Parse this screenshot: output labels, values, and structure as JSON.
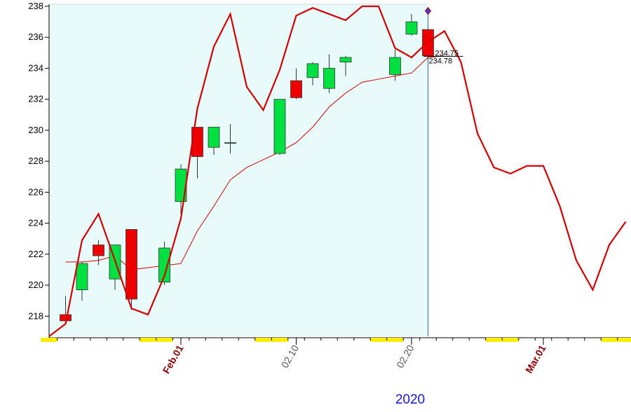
{
  "chart_data": {
    "type": "candlestick",
    "ylim": [
      216.7,
      238
    ],
    "yticks": [
      218,
      220,
      222,
      224,
      226,
      228,
      230,
      232,
      234,
      236,
      238
    ],
    "xlabel": "2020",
    "x_tick_labels": [
      {
        "label": "Feb.01",
        "day": 8,
        "style": "month"
      },
      {
        "label": "02.10",
        "day": 15,
        "style": "day"
      },
      {
        "label": "02.20",
        "day": 22,
        "style": "day"
      },
      {
        "label": "Mar.01",
        "day": 30,
        "style": "month"
      }
    ],
    "candles": [
      {
        "day": 1,
        "open": 218.1,
        "high": 219.3,
        "low": 217.7,
        "close": 217.7
      },
      {
        "day": 2,
        "open": 219.7,
        "high": 221.5,
        "low": 219.0,
        "close": 221.4
      },
      {
        "day": 3,
        "open": 222.6,
        "high": 222.9,
        "low": 221.3,
        "close": 221.9
      },
      {
        "day": 4,
        "open": 220.4,
        "high": 222.6,
        "low": 219.7,
        "close": 222.6
      },
      {
        "day": 5,
        "open": 223.6,
        "high": 223.6,
        "low": 218.4,
        "close": 219.1
      },
      {
        "day": 7,
        "open": 220.2,
        "high": 222.8,
        "low": 220.0,
        "close": 222.4
      },
      {
        "day": 8,
        "open": 225.4,
        "high": 227.8,
        "low": 224.6,
        "close": 227.5
      },
      {
        "day": 9,
        "open": 230.2,
        "high": 230.2,
        "low": 226.9,
        "close": 228.3
      },
      {
        "day": 10,
        "open": 228.9,
        "high": 230.2,
        "low": 228.4,
        "close": 230.2
      },
      {
        "day": 11,
        "open": 229.2,
        "high": 230.4,
        "low": 228.5,
        "close": 229.2
      },
      {
        "day": 14,
        "open": 228.5,
        "high": 232.0,
        "low": 228.4,
        "close": 232.0
      },
      {
        "day": 15,
        "open": 233.2,
        "high": 234.0,
        "low": 232.0,
        "close": 232.1
      },
      {
        "day": 16,
        "open": 233.4,
        "high": 234.4,
        "low": 232.9,
        "close": 234.3
      },
      {
        "day": 17,
        "open": 232.7,
        "high": 234.9,
        "low": 232.4,
        "close": 234.0
      },
      {
        "day": 18,
        "open": 234.4,
        "high": 234.8,
        "low": 233.5,
        "close": 234.7
      },
      {
        "day": 21,
        "open": 233.6,
        "high": 235.2,
        "low": 233.2,
        "close": 234.7
      },
      {
        "day": 22,
        "open": 236.2,
        "high": 237.5,
        "low": 236.1,
        "close": 237.0
      },
      {
        "day": 23,
        "open": 236.5,
        "high": 236.5,
        "low": 234.7,
        "close": 234.8
      }
    ],
    "series": [
      {
        "color": "#d40000",
        "style": "thick",
        "points": [
          [
            0,
            216.7
          ],
          [
            1,
            217.5
          ],
          [
            2,
            222.9
          ],
          [
            3,
            224.6
          ],
          [
            4,
            221.6
          ],
          [
            5,
            218.5
          ],
          [
            6,
            218.1
          ],
          [
            7,
            220.6
          ],
          [
            8,
            224.3
          ],
          [
            9,
            231.4
          ],
          [
            10,
            235.4
          ],
          [
            11,
            237.5
          ],
          [
            12,
            232.8
          ],
          [
            13,
            231.3
          ],
          [
            14,
            233.9
          ],
          [
            15,
            237.4
          ],
          [
            16,
            237.9
          ],
          [
            17,
            237.5
          ],
          [
            18,
            237.1
          ],
          [
            19,
            238.0
          ],
          [
            20,
            238.0
          ],
          [
            21,
            235.3
          ],
          [
            22,
            234.7
          ],
          [
            23,
            235.7
          ],
          [
            24,
            236.4
          ],
          [
            25,
            234.4
          ],
          [
            26,
            229.8
          ],
          [
            27,
            227.6
          ],
          [
            28,
            227.2
          ],
          [
            29,
            227.7
          ],
          [
            30,
            227.7
          ],
          [
            31,
            225.1
          ],
          [
            32,
            221.6
          ],
          [
            33,
            219.7
          ],
          [
            34,
            222.6
          ],
          [
            35,
            224.1
          ]
        ]
      },
      {
        "color": "#d40000",
        "style": "thin",
        "points": [
          [
            1,
            221.5
          ],
          [
            2,
            221.5
          ],
          [
            3,
            221.6
          ],
          [
            4,
            221.9
          ],
          [
            5,
            221.0
          ],
          [
            8,
            221.4
          ],
          [
            9,
            223.5
          ],
          [
            10,
            225.1
          ],
          [
            11,
            226.8
          ],
          [
            12,
            227.6
          ],
          [
            13,
            228.1
          ],
          [
            14,
            228.6
          ],
          [
            15,
            229.2
          ],
          [
            16,
            230.2
          ],
          [
            17,
            231.5
          ],
          [
            18,
            232.4
          ],
          [
            19,
            233.1
          ],
          [
            20,
            233.3
          ],
          [
            21,
            233.5
          ],
          [
            22,
            233.7
          ],
          [
            23,
            234.7
          ],
          [
            24,
            234.8
          ]
        ]
      }
    ],
    "current_day": 23,
    "marker_value": 237.7,
    "price_labels": [
      "234.75",
      "234.78"
    ],
    "price_line_value": 234.77,
    "shaded_until_day": 23,
    "weekend_days": [
      0,
      6,
      7,
      13,
      14,
      20,
      21,
      27,
      28,
      34,
      35
    ],
    "grid": false
  }
}
